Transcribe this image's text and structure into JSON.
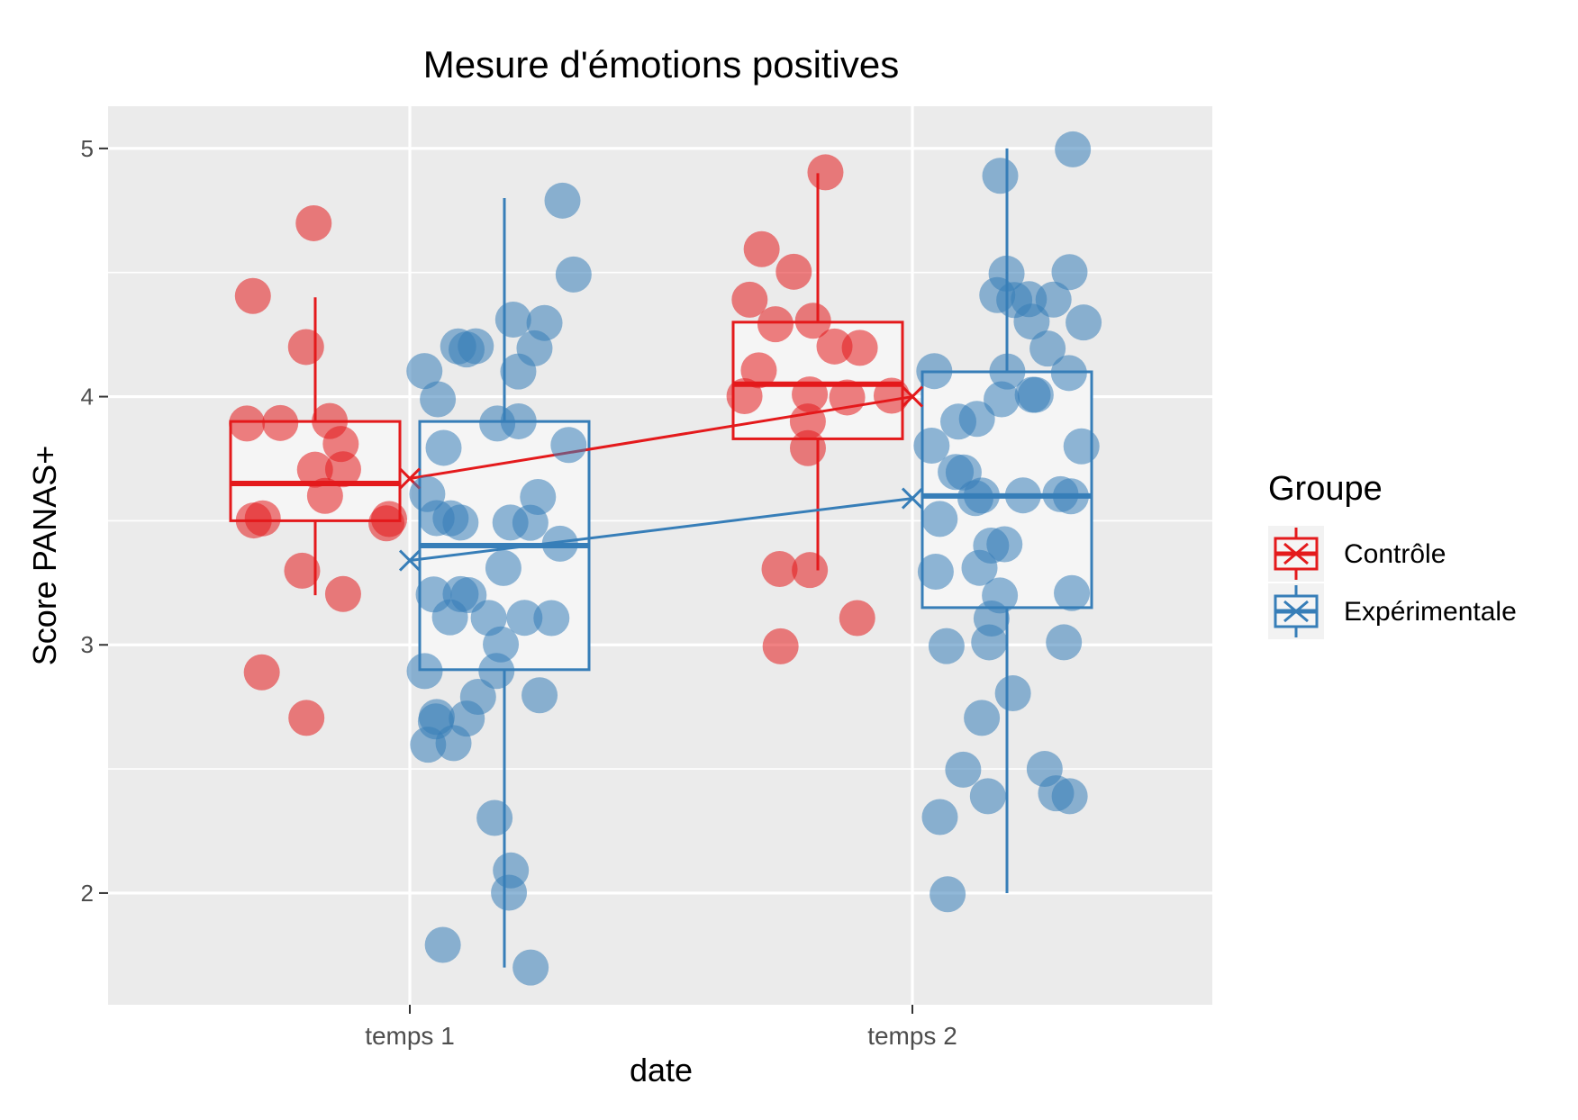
{
  "chart_data": {
    "type": "box",
    "title": "Mesure d'émotions positives",
    "xlabel": "date",
    "ylabel": "Score PANAS+",
    "categories": [
      "temps 1",
      "temps 2"
    ],
    "ylim": [
      1.55,
      5.17
    ],
    "yticks": [
      2,
      3,
      4,
      5
    ],
    "ytick_labels": [
      "2",
      "3",
      "4",
      "5"
    ],
    "grid": true,
    "legend": {
      "title": "Groupe",
      "placement": "right"
    },
    "colors": {
      "Contrôle": "#E41A1C",
      "Expérimentale": "#377EB8",
      "panel": "#EBEBEB",
      "grid": "#FFFFFF",
      "box_fill": "#F5F5F5"
    },
    "series": [
      {
        "name": "Contrôle",
        "boxes": [
          {
            "category": "temps 1",
            "whisker_low": 3.2,
            "q1": 3.5,
            "median": 3.65,
            "q3": 3.9,
            "whisker_high": 4.4,
            "mean": 3.67
          },
          {
            "category": "temps 2",
            "whisker_low": 3.3,
            "q1": 3.83,
            "median": 4.05,
            "q3": 4.3,
            "whisker_high": 4.9,
            "mean": 4.0
          }
        ],
        "points": [
          {
            "category": "temps 1",
            "values": [
              4.7,
              4.4,
              4.2,
              3.9,
              3.9,
              3.9,
              3.8,
              3.7,
              3.7,
              3.6,
              3.5,
              3.5,
              3.5,
              3.5,
              3.3,
              3.2,
              2.9,
              2.7
            ]
          },
          {
            "category": "temps 2",
            "values": [
              4.9,
              4.6,
              4.5,
              4.4,
              4.3,
              4.3,
              4.2,
              4.2,
              4.1,
              4.0,
              4.0,
              4.0,
              4.0,
              3.9,
              3.8,
              3.3,
              3.3,
              3.1,
              3.0
            ]
          }
        ]
      },
      {
        "name": "Expérimentale",
        "boxes": [
          {
            "category": "temps 1",
            "whisker_low": 1.7,
            "q1": 2.9,
            "median": 3.4,
            "q3": 3.9,
            "whisker_high": 4.8,
            "mean": 3.34
          },
          {
            "category": "temps 2",
            "whisker_low": 2.0,
            "q1": 3.15,
            "median": 3.6,
            "q3": 4.1,
            "whisker_high": 5.0,
            "mean": 3.59
          }
        ],
        "points": [
          {
            "category": "temps 1",
            "values": [
              4.8,
              4.5,
              4.3,
              4.3,
              4.2,
              4.2,
              4.2,
              4.2,
              4.1,
              4.1,
              4.0,
              3.9,
              3.9,
              3.8,
              3.8,
              3.6,
              3.6,
              3.5,
              3.5,
              3.5,
              3.5,
              3.5,
              3.4,
              3.3,
              3.2,
              3.2,
              3.2,
              3.1,
              3.1,
              3.1,
              3.1,
              3.0,
              2.9,
              2.9,
              2.8,
              2.8,
              2.7,
              2.7,
              2.7,
              2.6,
              2.6,
              2.3,
              2.1,
              2.0,
              1.8,
              1.7
            ]
          },
          {
            "category": "temps 2",
            "values": [
              5.0,
              4.9,
              4.5,
              4.5,
              4.4,
              4.4,
              4.4,
              4.4,
              4.3,
              4.3,
              4.2,
              4.1,
              4.1,
              4.1,
              4.0,
              4.0,
              4.0,
              3.9,
              3.9,
              3.8,
              3.8,
              3.7,
              3.7,
              3.6,
              3.6,
              3.6,
              3.6,
              3.6,
              3.5,
              3.4,
              3.4,
              3.3,
              3.3,
              3.2,
              3.2,
              3.1,
              3.0,
              3.0,
              3.0,
              2.8,
              2.7,
              2.5,
              2.5,
              2.4,
              2.4,
              2.4,
              2.3,
              2.0
            ]
          }
        ]
      }
    ]
  }
}
